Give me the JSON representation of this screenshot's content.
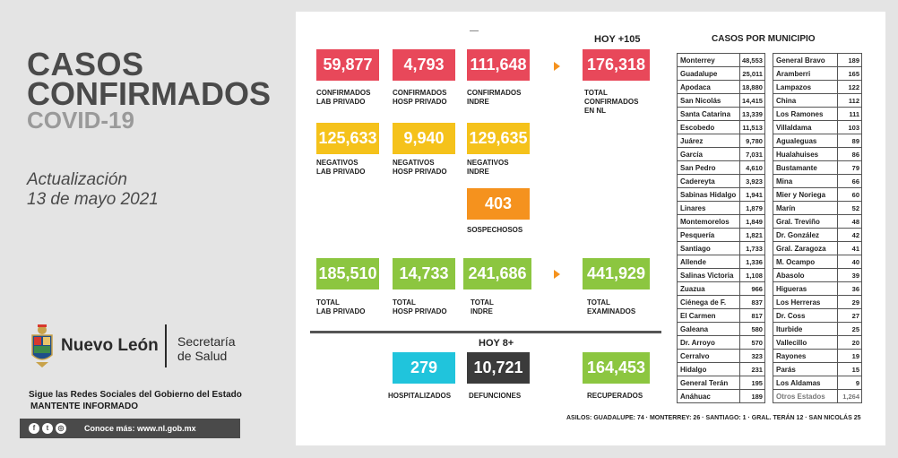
{
  "header": {
    "title_line1": "CASOS",
    "title_line2": "CONFIRMADOS",
    "subtitle": "COVID-19",
    "update_label": "Actualización",
    "update_date": "13 de mayo 2021"
  },
  "branding": {
    "state_name": "Nuevo León",
    "secretaria_line1": "Secretaría",
    "secretaria_line2": "de Salud",
    "follow_line1": "Sigue las Redes Sociales del Gobierno del Estado",
    "follow_line2": "MANTENTE INFORMADO",
    "social_icons": [
      "facebook-icon",
      "twitter-icon",
      "instagram-icon"
    ],
    "website": "Conoce más: www.nl.gob.mx"
  },
  "stats": {
    "hoy_confirmados": "HOY +105",
    "conf_lab_privado": {
      "value": "59,877",
      "label1": "CONFIRMADOS",
      "label2": "LAB PRIVADO"
    },
    "conf_hosp_privado": {
      "value": "4,793",
      "label1": "CONFIRMADOS",
      "label2": "HOSP PRIVADO"
    },
    "conf_indre": {
      "value": "111,648",
      "label1": "CONFIRMADOS",
      "label2": "INDRE"
    },
    "total_confirmados": {
      "value": "176,318",
      "label1": "TOTAL",
      "label2": "CONFIRMADOS",
      "label3": "EN NL"
    },
    "neg_lab_privado": {
      "value": "125,633",
      "label1": "NEGATIVOS",
      "label2": "LAB PRIVADO"
    },
    "neg_hosp_privado": {
      "value": "9,940",
      "label1": "NEGATIVOS",
      "label2": "HOSP PRIVADO"
    },
    "neg_indre": {
      "value": "129,635",
      "label1": "NEGATIVOS",
      "label2": "INDRE"
    },
    "sospechosos": {
      "value": "403",
      "label": "SOSPECHOSOS"
    },
    "total_lab_privado": {
      "value": "185,510",
      "label1": "TOTAL",
      "label2": "LAB PRIVADO"
    },
    "total_hosp_privado": {
      "value": "14,733",
      "label1": "TOTAL",
      "label2": "HOSP PRIVADO"
    },
    "total_indre": {
      "value": "241,686",
      "label1": "TOTAL",
      "label2": "INDRE"
    },
    "total_examinados": {
      "value": "441,929",
      "label1": "TOTAL",
      "label2": "EXAMINADOS"
    },
    "hoy_defunciones": "HOY 8+",
    "hospitalizados": {
      "value": "279",
      "label": "HOSPITALIZADOS"
    },
    "defunciones": {
      "value": "10,721",
      "label": "DEFUNCIONES"
    },
    "recuperados": {
      "value": "164,453",
      "label": "RECUPERADOS"
    }
  },
  "municipios": {
    "title": "CASOS POR MUNICIPIO",
    "col1": [
      {
        "name": "Monterrey",
        "value": "48,553"
      },
      {
        "name": "Guadalupe",
        "value": "25,011"
      },
      {
        "name": "Apodaca",
        "value": "18,880"
      },
      {
        "name": "San Nicolás",
        "value": "14,415"
      },
      {
        "name": "Santa Catarina",
        "value": "13,339"
      },
      {
        "name": "Escobedo",
        "value": "11,513"
      },
      {
        "name": "Juárez",
        "value": "9,780"
      },
      {
        "name": "García",
        "value": "7,031"
      },
      {
        "name": "San Pedro",
        "value": "4,610"
      },
      {
        "name": "Cadereyta",
        "value": "3,923"
      },
      {
        "name": "Sabinas Hidalgo",
        "value": "1,941"
      },
      {
        "name": "Linares",
        "value": "1,879"
      },
      {
        "name": "Montemorelos",
        "value": "1,849"
      },
      {
        "name": "Pesquería",
        "value": "1,821"
      },
      {
        "name": "Santiago",
        "value": "1,733"
      },
      {
        "name": "Allende",
        "value": "1,336"
      },
      {
        "name": "Salinas Victoria",
        "value": "1,108"
      },
      {
        "name": "Zuazua",
        "value": "966"
      },
      {
        "name": "Ciénega de F.",
        "value": "837"
      },
      {
        "name": "El Carmen",
        "value": "817"
      },
      {
        "name": "Galeana",
        "value": "580"
      },
      {
        "name": "Dr. Arroyo",
        "value": "570"
      },
      {
        "name": "Cerralvo",
        "value": "323"
      },
      {
        "name": "Hidalgo",
        "value": "231"
      },
      {
        "name": "General Terán",
        "value": "195"
      },
      {
        "name": "Anáhuac",
        "value": "189"
      }
    ],
    "col2": [
      {
        "name": "General Bravo",
        "value": "189"
      },
      {
        "name": "Aramberri",
        "value": "165"
      },
      {
        "name": "Lampazos",
        "value": "122"
      },
      {
        "name": "China",
        "value": "112"
      },
      {
        "name": "Los Ramones",
        "value": "111"
      },
      {
        "name": "Villaldama",
        "value": "103"
      },
      {
        "name": "Agualeguas",
        "value": "89"
      },
      {
        "name": "Hualahuises",
        "value": "86"
      },
      {
        "name": "Bustamante",
        "value": "79"
      },
      {
        "name": "Mina",
        "value": "66"
      },
      {
        "name": "Mier y Noriega",
        "value": "60"
      },
      {
        "name": "Marín",
        "value": "52"
      },
      {
        "name": "Gral. Treviño",
        "value": "48"
      },
      {
        "name": "Dr. González",
        "value": "42"
      },
      {
        "name": "Gral. Zaragoza",
        "value": "41"
      },
      {
        "name": "M. Ocampo",
        "value": "40"
      },
      {
        "name": "Abasolo",
        "value": "39"
      },
      {
        "name": "Higueras",
        "value": "36"
      },
      {
        "name": "Los Herreras",
        "value": "29"
      },
      {
        "name": "Dr. Coss",
        "value": "27"
      },
      {
        "name": "Iturbide",
        "value": "25"
      },
      {
        "name": "Vallecillo",
        "value": "20"
      },
      {
        "name": "Rayones",
        "value": "19"
      },
      {
        "name": "Parás",
        "value": "15"
      },
      {
        "name": "Los Aldamas",
        "value": "9"
      },
      {
        "name": "Otros Estados",
        "value": "1,264"
      }
    ],
    "asilos": "ASILOS: GUADALUPE: 74 · MONTERREY: 26 · SANTIAGO: 1 · GRAL. TERÁN 12 · SAN NICOLÁS 25"
  },
  "colors": {
    "confirmed": "#e8485a",
    "negative": "#f5c21b",
    "suspect": "#f5921e",
    "total": "#8cc640",
    "hospital": "#20c4dc",
    "deaths": "#3b3b3b"
  }
}
